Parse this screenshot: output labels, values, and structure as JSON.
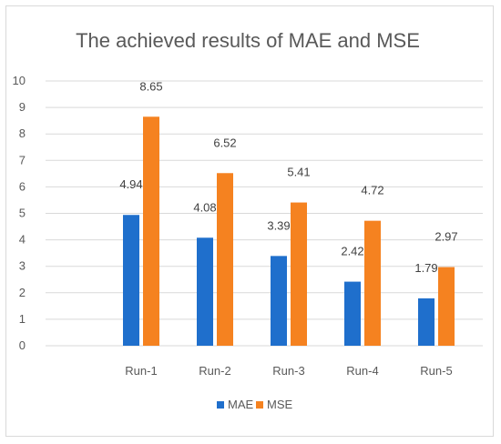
{
  "chart_data": {
    "type": "bar",
    "title": "The achieved results of MAE and MSE",
    "categories": [
      "Run-1",
      "Run-2",
      "Run-3",
      "Run-4",
      "Run-5"
    ],
    "series": [
      {
        "name": "MAE",
        "color": "#1F6FCC",
        "values": [
          4.94,
          4.08,
          3.39,
          2.42,
          1.79
        ]
      },
      {
        "name": "MSE",
        "color": "#F58220",
        "values": [
          8.65,
          6.52,
          5.41,
          4.72,
          2.97
        ]
      }
    ],
    "ylim": [
      0,
      10
    ],
    "yticks": [
      0,
      1,
      2,
      3,
      4,
      5,
      6,
      7,
      8,
      9,
      10
    ],
    "grid": true,
    "legend": "bottom"
  }
}
